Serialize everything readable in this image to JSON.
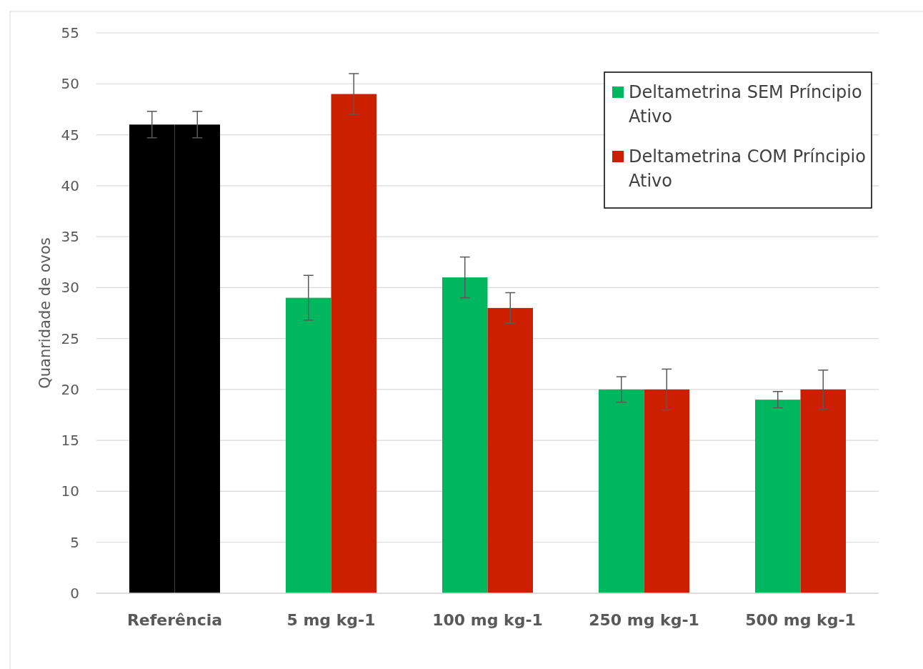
{
  "chart_data": {
    "type": "bar",
    "ylabel": "Quanridade de ovos",
    "categories": [
      "Referência",
      "5  mg kg-1",
      "100 mg kg-1",
      "250 mg kg-1",
      "500 mg kg-1"
    ],
    "series": [
      {
        "name": "Deltametrina SEM Príncipio Ativo",
        "color": "#00b760",
        "colors": [
          "#000000",
          "#00b760",
          "#00b760",
          "#00b760",
          "#00b760"
        ],
        "values": [
          46,
          29,
          31,
          20,
          19
        ],
        "errors": [
          1.3,
          2.2,
          2,
          1.25,
          0.8
        ]
      },
      {
        "name": "Deltametrina COM Príncipio Ativo",
        "color": "#cc1f00",
        "colors": [
          "#000000",
          "#cc1f00",
          "#cc1f00",
          "#cc1f00",
          "#cc1f00"
        ],
        "values": [
          46,
          49,
          28,
          20,
          20
        ],
        "errors": [
          1.3,
          2,
          1.5,
          2,
          1.9
        ]
      }
    ],
    "ylim": [
      0,
      55
    ],
    "yticks": [
      0,
      5,
      10,
      15,
      20,
      25,
      30,
      35,
      40,
      45,
      50,
      55
    ],
    "grid": "y",
    "legend": "top right"
  }
}
